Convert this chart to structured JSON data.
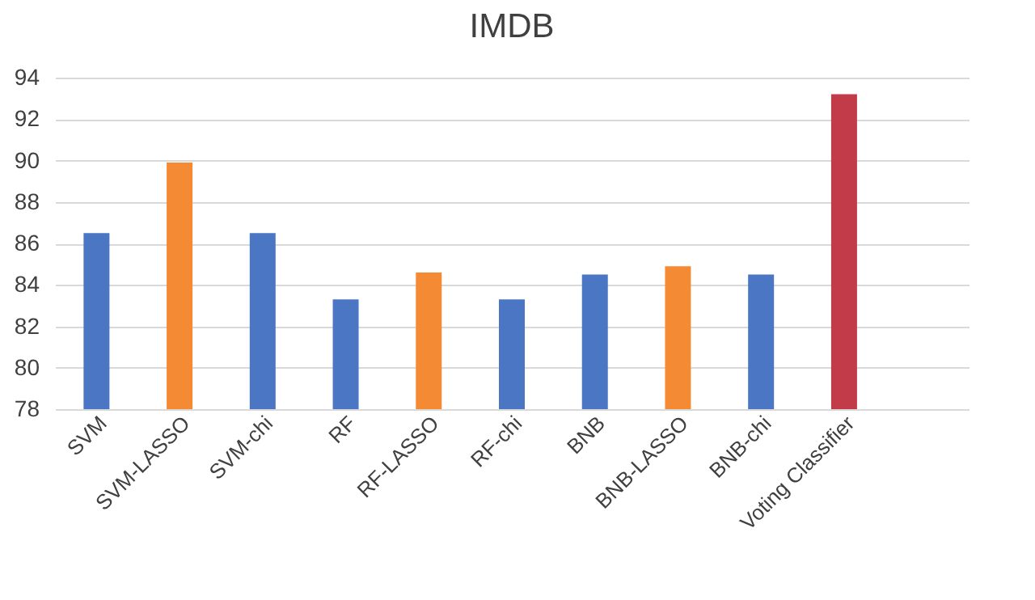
{
  "chart_data": {
    "type": "bar",
    "title": "IMDB",
    "categories": [
      "SVM",
      "SVM-LASSO",
      "SVM-chi",
      "RF",
      "RF-LASSO",
      "RF-chi",
      "BNB",
      "BNB-LASSO",
      "BNB-chi",
      "Voting Classifier",
      null
    ],
    "values": [
      86.5,
      89.9,
      86.5,
      83.3,
      84.6,
      83.3,
      84.5,
      84.9,
      84.5,
      93.2,
      null
    ],
    "colors": [
      "#4a76c4",
      "#f58a35",
      "#4a76c4",
      "#4a76c4",
      "#f58a35",
      "#4a76c4",
      "#4a76c4",
      "#f58a35",
      "#4a76c4",
      "#c23b48",
      "#4a76c4"
    ],
    "ylim": [
      78,
      94
    ],
    "yticks": [
      78,
      80,
      82,
      84,
      86,
      88,
      90,
      92,
      94
    ],
    "grid": "y"
  }
}
